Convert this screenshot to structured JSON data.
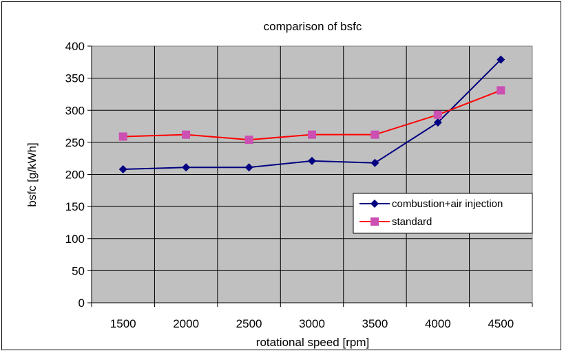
{
  "chart_data": {
    "type": "line",
    "title": "comparison of bsfc",
    "xlabel": "rotational speed [rpm]",
    "ylabel": "bsfc [g/kWh]",
    "categories": [
      "1500",
      "2000",
      "2500",
      "3000",
      "3500",
      "4000",
      "4500"
    ],
    "ylim": [
      0,
      400
    ],
    "yticks": [
      0,
      50,
      100,
      150,
      200,
      250,
      300,
      350,
      400
    ],
    "grid": true,
    "legend_position": "right",
    "plot_background": "#c0c0c0",
    "series": [
      {
        "name": "combustion+air injection",
        "values": [
          208,
          211,
          211,
          221,
          218,
          281,
          379
        ],
        "line_color": "#000080",
        "marker_color": "#000080",
        "marker": "diamond"
      },
      {
        "name": "standard",
        "values": [
          259,
          262,
          254,
          262,
          262,
          293,
          331
        ],
        "line_color": "#ff0000",
        "marker_color": "#cc4fb2",
        "marker": "square"
      }
    ]
  }
}
